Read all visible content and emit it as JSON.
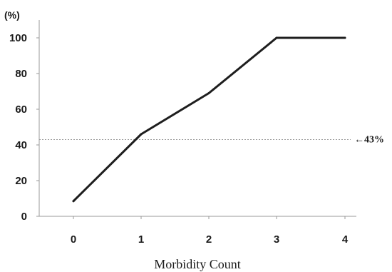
{
  "chart_data": {
    "type": "line",
    "x": [
      0,
      1,
      2,
      3,
      4
    ],
    "categories": [
      "0",
      "1",
      "2",
      "3",
      "4"
    ],
    "series": [
      {
        "values": [
          8.5,
          46,
          69,
          100,
          100
        ]
      }
    ],
    "unit_label": "(%)",
    "xlabel": "Morbidity Count",
    "ylabel": "",
    "ylim": [
      0,
      100
    ],
    "yticks": [
      "0",
      "20",
      "40",
      "60",
      "80",
      "100"
    ],
    "reference_line": {
      "value": 43,
      "label": "←43%",
      "style": "dotted"
    },
    "grid": false,
    "colors": {
      "line": "#1e1e1e",
      "reference": "#999999",
      "axis": "#999999"
    }
  }
}
